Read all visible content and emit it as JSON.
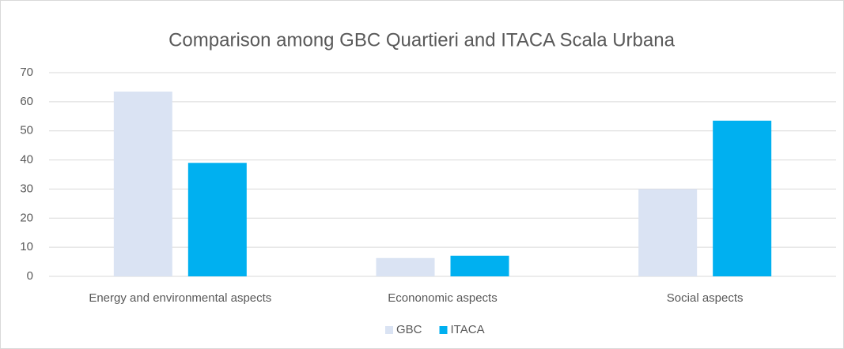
{
  "chart_data": {
    "type": "bar",
    "title": "Comparison among GBC Quartieri and ITACA Scala Urbana",
    "categories": [
      "Energy and environmental aspects",
      "Econonomic aspects",
      "Social aspects"
    ],
    "series": [
      {
        "name": "GBC",
        "color": "#dae3f3",
        "values": [
          63.5,
          6.3,
          30
        ]
      },
      {
        "name": "ITACA",
        "color": "#00b0f0",
        "values": [
          39,
          7.1,
          53.5
        ]
      }
    ],
    "ylim": [
      0,
      70
    ],
    "yticks": [
      0,
      10,
      20,
      30,
      40,
      50,
      60,
      70
    ],
    "grid": true,
    "legend": "bottom"
  }
}
